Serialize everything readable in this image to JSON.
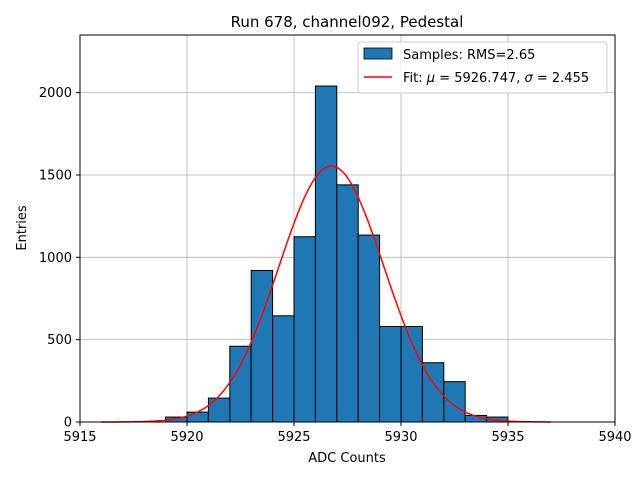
{
  "chart_data": {
    "type": "bar",
    "title": "Run 678, channel092, Pedestal",
    "xlabel": "ADC Counts",
    "ylabel": "Entries",
    "xlim": [
      5915,
      5940
    ],
    "ylim": [
      0,
      2350
    ],
    "xticks": [
      5915,
      5920,
      5925,
      5930,
      5935,
      5940
    ],
    "yticks": [
      0,
      500,
      1000,
      1500,
      2000
    ],
    "grid": true,
    "legend_position": "top-right",
    "histogram": {
      "name": "Samples: RMS=2.65",
      "color": "#1f77b4",
      "bin_edges": [
        5919,
        5920,
        5921,
        5922,
        5923,
        5924,
        5925,
        5926,
        5927,
        5928,
        5929,
        5930,
        5931,
        5932,
        5933,
        5934
      ],
      "bin_edges_end": 5935,
      "counts": [
        30,
        60,
        145,
        460,
        920,
        645,
        1125,
        2040,
        1440,
        1135,
        580,
        580,
        360,
        245,
        40,
        30
      ]
    },
    "fit": {
      "name_prefix": "Fit: ",
      "mu_symbol": "μ",
      "mu_text": " = 5926.747, ",
      "sigma_symbol": "σ",
      "sigma_text": " = 2.455",
      "color": "#ff0000",
      "mu": 5926.747,
      "sigma": 2.455,
      "amplitude": 1555,
      "x_range": [
        5916,
        5937
      ]
    }
  }
}
